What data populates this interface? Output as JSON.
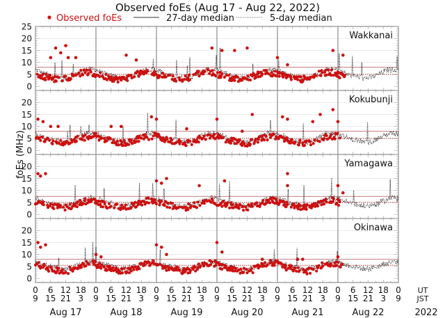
{
  "chart_data": {
    "type": "scatter",
    "title": "Observed foEs (Aug 17 - Aug 22, 2022)",
    "ylabel": "foEs (MHz)",
    "xlabel": "",
    "ylim": [
      -1.7,
      25
    ],
    "yticks": [
      0,
      5,
      10,
      15,
      20,
      25
    ],
    "xlim_hours": [
      0,
      144
    ],
    "legend": {
      "position": "top",
      "observed": "Observed foEs",
      "median27": "27-day median",
      "median5": "5-day median"
    },
    "colors": {
      "observed": "#cc1111",
      "median27": "#c98a8a",
      "median5_ref": "#b03030",
      "lines": "#111111",
      "day_sep": "#888888"
    },
    "x_tick_hours_ut": [
      "0",
      "6",
      "12",
      "18"
    ],
    "x_tick_hours_jst": [
      "9",
      "15",
      "21",
      "3"
    ],
    "x_tick_end_ut": "0",
    "x_tick_end_jst": "9",
    "x_axis_labels": {
      "ut": "UT",
      "jst": "JST",
      "year": "2022"
    },
    "days": [
      "Aug 17",
      "Aug 18",
      "Aug 19",
      "Aug 20",
      "Aug 21",
      "Aug 22"
    ],
    "stations": [
      {
        "name": "Wakkanai",
        "median27": 8,
        "median5": 5,
        "observed_until_hour": 123,
        "peaks": [
          [
            8,
            16
          ],
          [
            10,
            14
          ],
          [
            12,
            17
          ],
          [
            13,
            12
          ],
          [
            16,
            12
          ],
          [
            6,
            12
          ],
          [
            36,
            13
          ],
          [
            40,
            11
          ],
          [
            70,
            16
          ],
          [
            74,
            15
          ],
          [
            79,
            15
          ],
          [
            84,
            16
          ],
          [
            96,
            12
          ],
          [
            100,
            9
          ],
          [
            118,
            15
          ],
          [
            122,
            13
          ]
        ],
        "base_observed": [
          5,
          4.5,
          4,
          3.5,
          3,
          3,
          3.5,
          4,
          5,
          5.5,
          6,
          5.5
        ],
        "base_median": [
          7,
          6,
          5,
          4.5,
          4,
          3.5,
          3.5,
          4,
          5,
          6,
          7,
          7
        ]
      },
      {
        "name": "Kokubunji",
        "median27": 8,
        "median5": 5,
        "observed_until_hour": 121,
        "peaks": [
          [
            1,
            13
          ],
          [
            3,
            12
          ],
          [
            6,
            10
          ],
          [
            9,
            10
          ],
          [
            30,
            10
          ],
          [
            34,
            10
          ],
          [
            46,
            14
          ],
          [
            48,
            13
          ],
          [
            60,
            9
          ],
          [
            72,
            13
          ],
          [
            82,
            8
          ],
          [
            86,
            15
          ],
          [
            98,
            14
          ],
          [
            100,
            13
          ],
          [
            110,
            12
          ],
          [
            113,
            15
          ],
          [
            118,
            17
          ],
          [
            120,
            12
          ]
        ],
        "base_observed": [
          6,
          5,
          4.5,
          4,
          3.5,
          3,
          3,
          3.5,
          4.5,
          5,
          5.5,
          6
        ],
        "base_median": [
          7,
          6,
          5,
          4.5,
          4,
          3.5,
          3.5,
          4,
          5,
          6,
          7,
          7
        ]
      },
      {
        "name": "Yamagawa",
        "median27": 7.5,
        "median5": 5,
        "observed_until_hour": 121,
        "peaks": [
          [
            1,
            17
          ],
          [
            2,
            16
          ],
          [
            4,
            17
          ],
          [
            48,
            14
          ],
          [
            50,
            13
          ],
          [
            52,
            15
          ],
          [
            65,
            12
          ],
          [
            75,
            14
          ],
          [
            100,
            17
          ],
          [
            100,
            12
          ],
          [
            120,
            12
          ],
          [
            122,
            9
          ]
        ],
        "base_observed": [
          5,
          4.5,
          4,
          3.5,
          3,
          3,
          3,
          3.5,
          4,
          5,
          5.5,
          6
        ],
        "base_median": [
          6.5,
          6,
          5,
          4.5,
          4,
          3.5,
          3.5,
          4,
          4.5,
          5.5,
          6.5,
          7
        ]
      },
      {
        "name": "Okinawa",
        "median27": 8,
        "median5": 5.5,
        "observed_until_hour": 122,
        "peaks": [
          [
            1,
            15
          ],
          [
            2,
            13
          ],
          [
            4,
            14
          ],
          [
            24,
            10
          ],
          [
            26,
            9
          ],
          [
            48,
            14
          ],
          [
            50,
            13
          ],
          [
            52,
            10
          ],
          [
            72,
            15
          ],
          [
            74,
            11
          ],
          [
            90,
            8
          ],
          [
            104,
            8
          ],
          [
            106,
            8
          ],
          [
            120,
            9
          ]
        ],
        "base_observed": [
          6,
          5,
          4.5,
          4,
          3.5,
          3,
          3,
          3.5,
          4.5,
          5.5,
          6,
          6.5
        ],
        "base_median": [
          7,
          6,
          5.5,
          5,
          4.5,
          4,
          4,
          4.5,
          5,
          6,
          6.5,
          7
        ]
      }
    ]
  }
}
